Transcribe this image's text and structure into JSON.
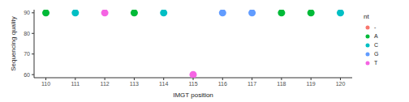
{
  "chart_data": {
    "type": "scatter",
    "x_label": "IMGT position",
    "y_label": "Sequencing quality",
    "legend_title": "nt",
    "x": [
      110,
      111,
      112,
      113,
      114,
      115,
      116,
      117,
      118,
      119,
      120
    ],
    "xlim": [
      109.6,
      120.4
    ],
    "xticks": [
      110,
      111,
      112,
      113,
      114,
      115,
      116,
      117,
      118,
      119,
      120
    ],
    "ylim": [
      58.5,
      91.5
    ],
    "yticks": [
      60,
      70,
      80,
      90
    ],
    "legend": "right",
    "series": [
      {
        "name": "-",
        "color": "#F8766D",
        "values": [
          null,
          null,
          null,
          null,
          null,
          null,
          null,
          null,
          null,
          null,
          null
        ]
      },
      {
        "name": "A",
        "color": "#00BA38",
        "values": [
          90,
          null,
          null,
          90,
          null,
          null,
          null,
          null,
          90,
          90,
          null
        ]
      },
      {
        "name": "C",
        "color": "#00BFC4",
        "values": [
          null,
          90,
          null,
          null,
          90,
          null,
          null,
          null,
          null,
          null,
          90
        ]
      },
      {
        "name": "G",
        "color": "#619CFF",
        "values": [
          null,
          null,
          null,
          null,
          null,
          null,
          90,
          90,
          null,
          null,
          null
        ]
      },
      {
        "name": "T",
        "color": "#F564E3",
        "values": [
          null,
          null,
          90,
          null,
          null,
          60,
          null,
          null,
          null,
          null,
          null
        ]
      }
    ]
  }
}
